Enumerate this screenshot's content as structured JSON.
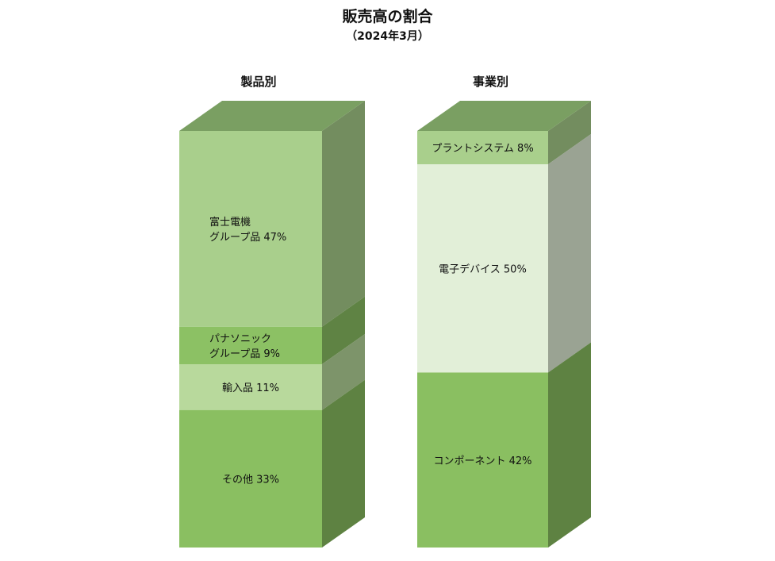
{
  "title": "販売高の割合",
  "subtitle": "（2024年3月）",
  "chart_data": [
    {
      "type": "bar",
      "title": "製品別",
      "segments": [
        {
          "label_lines": [
            "富士電機",
            "グループ品 47%"
          ],
          "value": 47,
          "color": "#a9cf8c"
        },
        {
          "label_lines": [
            "パナソニック",
            "グループ品 9%"
          ],
          "value": 9,
          "color": "#8cc164"
        },
        {
          "label_lines": [
            "輸入品 11%"
          ],
          "value": 11,
          "color": "#b8d99c"
        },
        {
          "label_lines": [
            "その他 33%"
          ],
          "value": 33,
          "color": "#8abf61"
        }
      ]
    },
    {
      "type": "bar",
      "title": "事業別",
      "segments": [
        {
          "label_lines": [
            "プラントシステム 8%"
          ],
          "value": 8,
          "color": "#a9cf8c"
        },
        {
          "label_lines": [
            "電子デバイス 50%"
          ],
          "value": 50,
          "color": "#e2efd8"
        },
        {
          "label_lines": [
            "コンポーネント 42%"
          ],
          "value": 42,
          "color": "#8abf61"
        }
      ]
    }
  ]
}
